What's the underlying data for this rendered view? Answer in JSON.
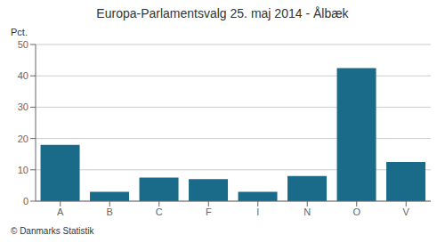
{
  "chart_data": {
    "type": "bar",
    "title": "Europa-Parlamentsvalg 25. maj 2014 - Ålbæk",
    "ylabel": "Pct.",
    "footer": "© Danmarks Statistik",
    "categories": [
      "A",
      "B",
      "C",
      "F",
      "I",
      "N",
      "O",
      "V"
    ],
    "values": [
      18.0,
      3.0,
      7.5,
      7.0,
      3.0,
      8.0,
      42.5,
      12.5
    ],
    "color": "#1a6b8a",
    "ylim": [
      0,
      50
    ],
    "yticks": [
      0,
      10,
      20,
      30,
      40,
      50
    ],
    "grid": true
  }
}
